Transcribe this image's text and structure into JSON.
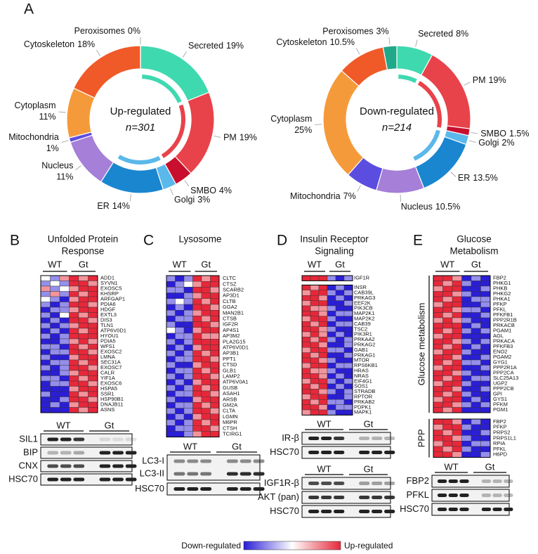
{
  "panels": [
    {
      "letter": "A"
    },
    {
      "letter": "B",
      "title": [
        "Unfolded Protein",
        "Response"
      ],
      "blots": [
        {
          "groups": [
            "WT",
            "Gt"
          ],
          "rows": [
            "SIL1",
            "BIP",
            "CNX",
            "HSC70"
          ]
        }
      ]
    },
    {
      "letter": "C",
      "title": [
        "Lysosome"
      ],
      "blots": [
        {
          "groups": [
            "WT",
            "Gt"
          ],
          "rows": [
            "LC3-I",
            "LC3-II",
            "HSC70"
          ]
        }
      ]
    },
    {
      "letter": "D",
      "title": [
        "Insulin Receptor",
        "Signaling"
      ],
      "blots": [
        {
          "groups": [
            "WT",
            "Gt"
          ],
          "rows": [
            "IR-β",
            "HSC70"
          ]
        },
        {
          "groups": [
            "WT",
            "Gt"
          ],
          "rows": [
            "IGF1R-β",
            "AKT (pan)",
            "HSC70"
          ]
        }
      ]
    },
    {
      "letter": "E",
      "title": [
        "Glucose",
        "Metabolism"
      ],
      "blots": [
        {
          "groups": [
            "WT",
            "Gt"
          ],
          "rows": [
            "FBP2",
            "PFKL",
            "HSC70"
          ]
        }
      ]
    }
  ],
  "color_legend": {
    "low_label": "Down-regulated",
    "high_label": "Up-regulated"
  },
  "chart_data": [
    {
      "type": "pie",
      "center_label": "Up-regulated",
      "count_label": "n=301",
      "categories": [
        "Secreted",
        "PM",
        "SMBO",
        "Golgi",
        "ER",
        "Nucleus",
        "Mitochondria",
        "Cytoplasm",
        "Cytoskeleton",
        "Peroxisomes"
      ],
      "values": [
        19,
        19,
        4,
        3,
        14,
        11,
        1,
        11,
        18,
        0
      ],
      "value_labels": [
        "19%",
        "19%",
        "4%",
        "3%",
        "14%",
        "11%",
        "1%",
        "11%",
        "18%",
        "0%"
      ],
      "colors": [
        "#3fd9b0",
        "#e8434a",
        "#c8102e",
        "#5bb8ea",
        "#1a86d0",
        "#a67fd8",
        "#5b4de0",
        "#f59a3a",
        "#f05a28",
        "#1fa88a"
      ]
    },
    {
      "type": "pie",
      "center_label": "Down-regulated",
      "count_label": "n=214",
      "categories": [
        "Secreted",
        "PM",
        "SMBO",
        "Golgi",
        "ER",
        "Nucleus",
        "Mitochondria",
        "Cytoplasm",
        "Cytoskeleton",
        "Peroxisomes"
      ],
      "values": [
        8,
        19,
        1.5,
        2,
        13.5,
        10.5,
        7,
        25,
        10.5,
        3
      ],
      "value_labels": [
        "8%",
        "19%",
        "1.5%",
        "2%",
        "13.5%",
        "10.5%",
        "7%",
        "25%",
        "10.5%",
        "3%"
      ],
      "colors": [
        "#3fd9b0",
        "#e8434a",
        "#c8102e",
        "#5bb8ea",
        "#1a86d0",
        "#a67fd8",
        "#5b4de0",
        "#f59a3a",
        "#f05a28",
        "#1fa88a"
      ]
    },
    {
      "type": "heatmap",
      "groups": [
        "WT",
        "Gt"
      ],
      "rows": [
        "ADD1",
        "SYVN1",
        "EXOSC5",
        "KHSRP",
        "ARFGAP1",
        "PDIA6",
        "HDGF",
        "EXTL3",
        "DIS3",
        "TLN1",
        "ATP6V0D1",
        "HYOU1",
        "PDIA5",
        "WFS1",
        "EXOSC2",
        "LMNA",
        "SEC31A",
        "EXOSC7",
        "CALR",
        "YIF1A",
        "EXOSC6",
        "HSPA5",
        "SSR1",
        "HSP90B1",
        "DNAJB11",
        "ASNS"
      ],
      "values": [
        [
          0,
          -1,
          1,
          2,
          1,
          2
        ],
        [
          -1,
          0,
          -1,
          2,
          2,
          1
        ],
        [
          1,
          -1,
          0,
          1,
          2,
          2
        ],
        [
          -1,
          1,
          -1,
          2,
          1,
          2
        ],
        [
          0,
          -1,
          -2,
          1,
          2,
          2
        ],
        [
          -1,
          -2,
          -1,
          2,
          2,
          1
        ],
        [
          -2,
          -1,
          -1,
          1,
          2,
          2
        ],
        [
          -1,
          -2,
          0,
          2,
          1,
          2
        ],
        [
          -2,
          -1,
          -2,
          2,
          2,
          1
        ],
        [
          -1,
          -2,
          -1,
          1,
          2,
          2
        ],
        [
          -2,
          -1,
          -2,
          2,
          1,
          2
        ],
        [
          -1,
          -2,
          -1,
          2,
          2,
          2
        ],
        [
          -2,
          -2,
          -1,
          1,
          2,
          1
        ],
        [
          -1,
          -1,
          -2,
          2,
          1,
          2
        ],
        [
          -2,
          -1,
          -1,
          2,
          2,
          1
        ],
        [
          -1,
          -2,
          -2,
          1,
          2,
          2
        ],
        [
          -2,
          -1,
          -1,
          2,
          1,
          2
        ],
        [
          -1,
          -2,
          -1,
          2,
          2,
          1
        ],
        [
          -2,
          -2,
          -1,
          1,
          2,
          2
        ],
        [
          -1,
          -1,
          -2,
          2,
          1,
          2
        ],
        [
          -2,
          -1,
          -1,
          2,
          2,
          1
        ],
        [
          -2,
          -2,
          -2,
          1,
          2,
          2
        ],
        [
          -1,
          -2,
          -2,
          2,
          1,
          2
        ],
        [
          -2,
          -2,
          -1,
          2,
          2,
          1
        ],
        [
          -2,
          -1,
          -2,
          1,
          2,
          2
        ],
        [
          -2,
          -2,
          -2,
          2,
          1,
          2
        ]
      ]
    },
    {
      "type": "heatmap",
      "groups": [
        "WT",
        "Gt"
      ],
      "rows": [
        "CLTC",
        "CTSZ",
        "SCARB2",
        "AP3D1",
        "CLTB",
        "GGA2",
        "MAN2B1",
        "CTSB",
        "IGF2R",
        "AP4S1",
        "AP3M2",
        "PLA2G15",
        "ATP6V0D1",
        "AP3B1",
        "PPT1",
        "CTSD",
        "GLB1",
        "LAMP2",
        "ATP6V0A1",
        "GUSB",
        "ASAH1",
        "ARSB",
        "GM2A",
        "CLTA",
        "LGMN",
        "M6PR",
        "CTSH",
        "TCIRG1"
      ],
      "values": [
        [
          -1,
          -2,
          -1,
          2,
          1,
          2
        ],
        [
          -2,
          -1,
          0,
          1,
          2,
          2
        ],
        [
          -1,
          -1,
          -2,
          2,
          2,
          1
        ],
        [
          -2,
          -2,
          -1,
          1,
          2,
          2
        ],
        [
          -1,
          0,
          -1,
          2,
          1,
          2
        ],
        [
          -2,
          -1,
          -2,
          2,
          2,
          1
        ],
        [
          -1,
          -2,
          -1,
          1,
          2,
          2
        ],
        [
          -2,
          -1,
          -1,
          2,
          1,
          2
        ],
        [
          -1,
          -2,
          -2,
          2,
          2,
          1
        ],
        [
          0,
          -1,
          -2,
          1,
          2,
          2
        ],
        [
          -2,
          -1,
          -1,
          2,
          1,
          1
        ],
        [
          -1,
          -2,
          -1,
          2,
          2,
          2
        ],
        [
          -2,
          -1,
          -2,
          1,
          2,
          2
        ],
        [
          -1,
          -2,
          -1,
          2,
          1,
          2
        ],
        [
          -2,
          -1,
          -1,
          2,
          2,
          1
        ],
        [
          -1,
          -2,
          -2,
          1,
          2,
          2
        ],
        [
          -2,
          -1,
          -1,
          2,
          1,
          2
        ],
        [
          -1,
          -2,
          -1,
          2,
          2,
          1
        ],
        [
          -2,
          -1,
          -2,
          1,
          2,
          2
        ],
        [
          -1,
          -2,
          -1,
          2,
          1,
          2
        ],
        [
          -2,
          -1,
          -1,
          2,
          2,
          1
        ],
        [
          -1,
          -2,
          -2,
          1,
          2,
          2
        ],
        [
          -2,
          -1,
          -1,
          2,
          1,
          2
        ],
        [
          -1,
          -2,
          -1,
          2,
          2,
          1
        ],
        [
          -2,
          -1,
          -2,
          1,
          2,
          2
        ],
        [
          -1,
          -2,
          -1,
          2,
          1,
          2
        ],
        [
          -2,
          -1,
          -1,
          2,
          2,
          1
        ],
        [
          -2,
          -2,
          -1,
          1,
          2,
          2
        ]
      ]
    },
    {
      "type": "heatmap",
      "groups": [
        "WT",
        "Gt"
      ],
      "rows": [
        "IGF1R",
        "INSR",
        "CAB39L",
        "PRKAG3",
        "EEF2K",
        "PIK3CB",
        "MAP2K1",
        "MAP2K2",
        "CAB39",
        "TSC2",
        "PIK3R1",
        "PRKAA2",
        "PRKAG2",
        "GAB1",
        "PRKAG1",
        "MTOR",
        "RPS6KB1",
        "HRAS",
        "NRAS",
        "EIF4G1",
        "SOS1",
        "STRADB",
        "RPTOR",
        "PRKAB2",
        "PDPK1",
        "MAPK1"
      ],
      "values": [
        [
          2,
          2,
          2,
          -1,
          -2,
          -1
        ],
        [
          2,
          1,
          2,
          -2,
          -1,
          -2
        ],
        [
          1,
          2,
          2,
          -1,
          -2,
          -1
        ],
        [
          2,
          2,
          1,
          -2,
          -1,
          -2
        ],
        [
          1,
          2,
          2,
          -2,
          -2,
          -1
        ],
        [
          2,
          1,
          1,
          -1,
          -2,
          -2
        ],
        [
          2,
          2,
          1,
          -2,
          -1,
          -1
        ],
        [
          1,
          2,
          2,
          -1,
          -2,
          -2
        ],
        [
          2,
          1,
          2,
          -2,
          -1,
          -1
        ],
        [
          2,
          2,
          1,
          -1,
          -2,
          -2
        ],
        [
          1,
          2,
          1,
          -2,
          -1,
          -2
        ],
        [
          2,
          1,
          2,
          -1,
          -2,
          -1
        ],
        [
          2,
          2,
          1,
          -2,
          -2,
          -1
        ],
        [
          1,
          2,
          2,
          -1,
          -1,
          -2
        ],
        [
          2,
          1,
          2,
          -2,
          -2,
          -1
        ],
        [
          2,
          2,
          1,
          -1,
          -2,
          -2
        ],
        [
          1,
          2,
          2,
          -2,
          -1,
          -1
        ],
        [
          2,
          1,
          1,
          -1,
          -2,
          -2
        ],
        [
          2,
          2,
          1,
          -2,
          -1,
          -2
        ],
        [
          1,
          2,
          2,
          -1,
          -2,
          -1
        ],
        [
          2,
          1,
          2,
          -2,
          -1,
          -2
        ],
        [
          2,
          2,
          1,
          -1,
          -2,
          -1
        ],
        [
          1,
          2,
          2,
          -2,
          -2,
          -1
        ],
        [
          2,
          1,
          2,
          -1,
          -1,
          -2
        ],
        [
          2,
          2,
          1,
          -2,
          -1,
          -1
        ],
        [
          1,
          2,
          2,
          -1,
          -2,
          -2
        ]
      ]
    },
    {
      "type": "heatmap",
      "groups": [
        "WT",
        "Gt"
      ],
      "label": "Glucose metabolism",
      "rows": [
        "FBP2",
        "PHKG1",
        "PHKB",
        "PHKG2",
        "PHKA1",
        "PFKP",
        "PFKL",
        "PFKFB1",
        "PPP2R1B",
        "PRKACB",
        "PGAM1",
        "AGL",
        "PRKACA",
        "PFKFB3",
        "ENO2",
        "PGAM2",
        "GYG1",
        "PPP2R1A",
        "PPP2CA",
        "SLC25A13",
        "UGP2",
        "PPP2CB",
        "GPI",
        "GYS1",
        "PFKM",
        "PGM1"
      ],
      "values": [
        [
          2,
          2,
          1,
          -2,
          -1,
          -2
        ],
        [
          2,
          1,
          2,
          -1,
          -2,
          -2
        ],
        [
          1,
          2,
          2,
          -2,
          -2,
          -1
        ],
        [
          2,
          2,
          1,
          -1,
          -2,
          -2
        ],
        [
          2,
          1,
          2,
          -2,
          -1,
          -1
        ],
        [
          1,
          2,
          2,
          -2,
          -2,
          -1
        ],
        [
          2,
          2,
          1,
          -1,
          -1,
          -2
        ],
        [
          2,
          1,
          2,
          -2,
          -2,
          -1
        ],
        [
          1,
          2,
          1,
          -1,
          -2,
          -2
        ],
        [
          2,
          2,
          2,
          -2,
          -1,
          -2
        ],
        [
          2,
          1,
          2,
          -1,
          -2,
          -1
        ],
        [
          1,
          2,
          2,
          -2,
          -2,
          -2
        ],
        [
          2,
          2,
          1,
          -1,
          -2,
          -1
        ],
        [
          2,
          1,
          2,
          -2,
          -1,
          -2
        ],
        [
          1,
          2,
          2,
          -1,
          -2,
          -2
        ],
        [
          2,
          2,
          1,
          -2,
          -2,
          -1
        ],
        [
          2,
          1,
          2,
          -1,
          -1,
          -2
        ],
        [
          1,
          2,
          2,
          -2,
          -2,
          -1
        ],
        [
          2,
          2,
          1,
          -1,
          -2,
          -2
        ],
        [
          2,
          1,
          2,
          -2,
          -1,
          -1
        ],
        [
          1,
          2,
          2,
          -1,
          -2,
          -2
        ],
        [
          2,
          2,
          1,
          -2,
          -2,
          -1
        ],
        [
          2,
          1,
          2,
          -1,
          -2,
          -2
        ],
        [
          1,
          2,
          2,
          -2,
          -1,
          -2
        ],
        [
          2,
          2,
          1,
          -1,
          -2,
          -1
        ],
        [
          2,
          1,
          2,
          -2,
          -2,
          -2
        ]
      ]
    },
    {
      "type": "heatmap",
      "label": "PPP",
      "rows": [
        "FBP2",
        "PFKP",
        "PRPS2",
        "PRPS1L1",
        "RPIA",
        "PFKL",
        "H6PD"
      ],
      "values": [
        [
          2,
          2,
          1,
          -2,
          -1,
          -2
        ],
        [
          1,
          2,
          2,
          -1,
          -2,
          -2
        ],
        [
          2,
          1,
          2,
          -2,
          -2,
          -1
        ],
        [
          2,
          2,
          1,
          -1,
          -2,
          -2
        ],
        [
          1,
          2,
          2,
          -2,
          -1,
          -1
        ],
        [
          2,
          1,
          2,
          -1,
          -2,
          -2
        ],
        [
          2,
          2,
          1,
          -2,
          -2,
          -1
        ]
      ]
    }
  ]
}
